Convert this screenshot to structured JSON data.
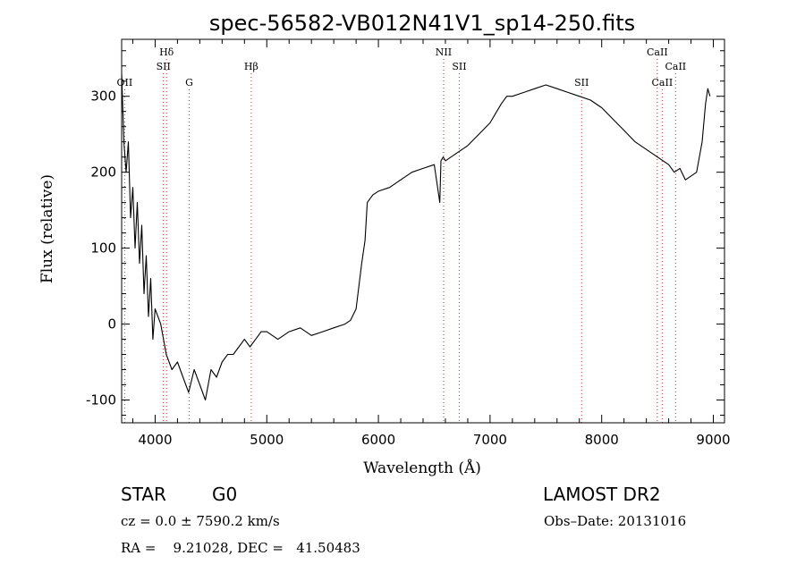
{
  "chart_data": {
    "type": "line",
    "title": "spec-56582-VB012N41V1_sp14-250.fits",
    "xlabel": "Wavelength (Å)",
    "ylabel": "Flux (relative)",
    "xlim": [
      3700,
      9100
    ],
    "ylim": [
      -130,
      375
    ],
    "xticks": [
      4000,
      5000,
      6000,
      7000,
      8000,
      9000
    ],
    "yticks": [
      -100,
      0,
      100,
      200,
      300
    ],
    "grid": false,
    "line_color": "#000000",
    "marker_color": "#cc3333",
    "spectral_lines": [
      {
        "label": "OII",
        "x": 3727,
        "row": 3
      },
      {
        "label": "Hδ",
        "x": 4102,
        "row": 1
      },
      {
        "label": "SII",
        "x": 4074,
        "row": 2
      },
      {
        "label": "G",
        "x": 4305,
        "row": 3
      },
      {
        "label": "Hβ",
        "x": 4861,
        "row": 2
      },
      {
        "label": "NII",
        "x": 6584,
        "row": 1
      },
      {
        "label": "SII",
        "x": 6724,
        "row": 2
      },
      {
        "label": "SII",
        "x": 7820,
        "row": 3
      },
      {
        "label": "CaII",
        "x": 8498,
        "row": 1
      },
      {
        "label": "CaII",
        "x": 8662,
        "row": 2
      },
      {
        "label": "CaII",
        "x": 8542,
        "row": 3
      }
    ],
    "series": [
      {
        "x": [
          3700,
          3720,
          3740,
          3760,
          3780,
          3800,
          3820,
          3840,
          3860,
          3880,
          3900,
          3920,
          3940,
          3960,
          3980,
          4000,
          4050,
          4100,
          4150,
          4200,
          4250,
          4300,
          4350,
          4400,
          4450,
          4500,
          4550,
          4600,
          4650,
          4700,
          4750,
          4800,
          4850,
          4900,
          4950,
          5000,
          5100,
          5200,
          5300,
          5400,
          5500,
          5600,
          5700,
          5750,
          5800,
          5850,
          5880,
          5900,
          5950,
          6000,
          6100,
          6200,
          6300,
          6400,
          6500,
          6550,
          6560,
          6580,
          6600,
          6700,
          6800,
          6900,
          7000,
          7100,
          7150,
          7200,
          7300,
          7400,
          7500,
          7600,
          7700,
          7800,
          7900,
          8000,
          8100,
          8200,
          8300,
          8400,
          8500,
          8600,
          8650,
          8700,
          8750,
          8800,
          8850,
          8900,
          8930,
          8950,
          8970
        ],
        "y": [
          330,
          240,
          200,
          240,
          140,
          180,
          100,
          160,
          80,
          130,
          40,
          90,
          10,
          60,
          -20,
          20,
          0,
          -40,
          -60,
          -50,
          -70,
          -90,
          -60,
          -80,
          -100,
          -60,
          -70,
          -50,
          -40,
          -40,
          -30,
          -20,
          -30,
          -20,
          -10,
          -10,
          -20,
          -10,
          -5,
          -15,
          -10,
          -5,
          0,
          5,
          20,
          80,
          110,
          160,
          170,
          175,
          180,
          190,
          200,
          205,
          210,
          160,
          215,
          220,
          215,
          225,
          235,
          250,
          265,
          290,
          300,
          300,
          305,
          310,
          315,
          310,
          305,
          300,
          295,
          285,
          270,
          255,
          240,
          230,
          220,
          210,
          200,
          205,
          190,
          195,
          200,
          240,
          290,
          310,
          300
        ]
      }
    ]
  },
  "info": {
    "object_class": "STAR",
    "subclass": "G0",
    "survey": "LAMOST DR2",
    "cz_line": "cz = 0.0 ± 7590.2 km/s",
    "obs_date_line": "Obs–Date: 20131016",
    "radec_line": "RA =    9.21028, DEC =   41.50483"
  }
}
